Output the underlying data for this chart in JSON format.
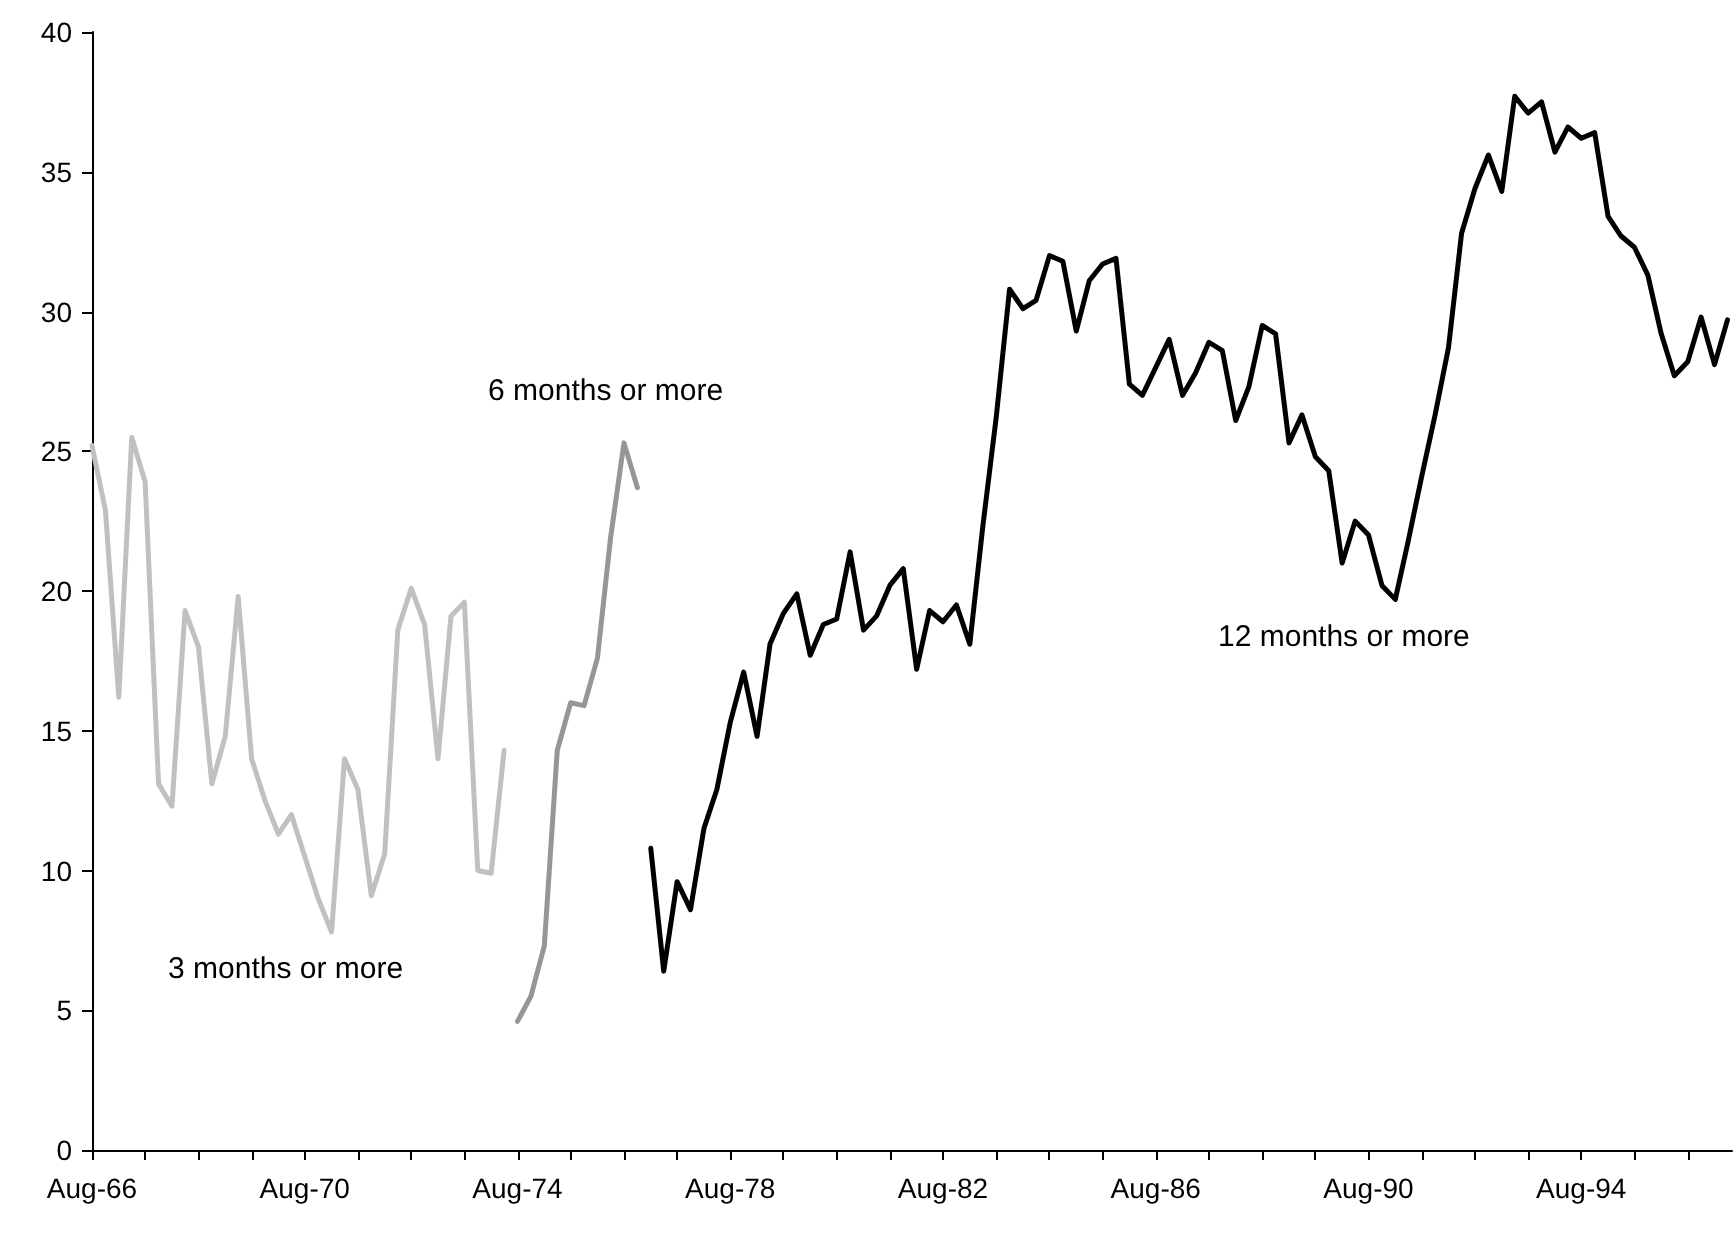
{
  "chart_data": {
    "type": "line",
    "xlim": [
      "1966-08",
      "1997-06"
    ],
    "xticks": [
      {
        "value": "1966-08",
        "label": "Aug-66"
      },
      {
        "value": "1967-08",
        "label": null
      },
      {
        "value": "1968-08",
        "label": null
      },
      {
        "value": "1969-08",
        "label": null
      },
      {
        "value": "1970-08",
        "label": "Aug-70"
      },
      {
        "value": "1971-08",
        "label": null
      },
      {
        "value": "1972-08",
        "label": null
      },
      {
        "value": "1973-08",
        "label": null
      },
      {
        "value": "1974-08",
        "label": "Aug-74"
      },
      {
        "value": "1975-08",
        "label": null
      },
      {
        "value": "1976-08",
        "label": null
      },
      {
        "value": "1977-08",
        "label": null
      },
      {
        "value": "1978-08",
        "label": "Aug-78"
      },
      {
        "value": "1979-08",
        "label": null
      },
      {
        "value": "1980-08",
        "label": null
      },
      {
        "value": "1981-08",
        "label": null
      },
      {
        "value": "1982-08",
        "label": "Aug-82"
      },
      {
        "value": "1983-08",
        "label": null
      },
      {
        "value": "1984-08",
        "label": null
      },
      {
        "value": "1985-08",
        "label": null
      },
      {
        "value": "1986-08",
        "label": "Aug-86"
      },
      {
        "value": "1987-08",
        "label": null
      },
      {
        "value": "1988-08",
        "label": null
      },
      {
        "value": "1989-08",
        "label": null
      },
      {
        "value": "1990-08",
        "label": "Aug-90"
      },
      {
        "value": "1991-08",
        "label": null
      },
      {
        "value": "1992-08",
        "label": null
      },
      {
        "value": "1993-08",
        "label": null
      },
      {
        "value": "1994-08",
        "label": "Aug-94"
      },
      {
        "value": "1995-08",
        "label": null
      },
      {
        "value": "1996-08",
        "label": null
      }
    ],
    "ylim": [
      0,
      40
    ],
    "yticks": [
      0,
      5,
      10,
      15,
      20,
      25,
      30,
      35,
      40
    ],
    "grid": false,
    "legend": false,
    "marker": "none",
    "line_style": "solid",
    "series": [
      {
        "name": "3 months or more",
        "color": "#c0c0c0",
        "x": [
          "1966-08",
          "1966-11",
          "1967-02",
          "1967-05",
          "1967-08",
          "1967-11",
          "1968-02",
          "1968-05",
          "1968-08",
          "1968-11",
          "1969-02",
          "1969-05",
          "1969-08",
          "1969-11",
          "1970-02",
          "1970-05",
          "1970-08",
          "1970-11",
          "1971-02",
          "1971-05",
          "1971-08",
          "1971-11",
          "1972-02",
          "1972-05",
          "1972-08",
          "1972-11",
          "1973-02",
          "1973-05",
          "1973-08",
          "1973-11",
          "1974-02",
          "1974-05"
        ],
        "values": [
          25.2,
          22.9,
          16.2,
          25.5,
          23.9,
          13.1,
          12.3,
          19.3,
          18.0,
          13.1,
          14.8,
          19.8,
          14.0,
          12.5,
          11.3,
          12.0,
          10.5,
          9.0,
          7.8,
          14.0,
          12.9,
          9.1,
          10.6,
          18.6,
          20.1,
          18.8,
          14.0,
          19.1,
          19.6,
          10.0,
          9.9,
          14.3
        ]
      },
      {
        "name": "6 months or more",
        "color": "#969696",
        "x": [
          "1974-08",
          "1974-11",
          "1975-02",
          "1975-05",
          "1975-08",
          "1975-11",
          "1976-02",
          "1976-05",
          "1976-08",
          "1976-11"
        ],
        "values": [
          4.6,
          5.5,
          7.3,
          14.3,
          16.0,
          15.9,
          17.6,
          21.9,
          25.3,
          23.7
        ]
      },
      {
        "name": "12 months or more",
        "color": "#000000",
        "x": [
          "1977-02",
          "1977-05",
          "1977-08",
          "1977-11",
          "1978-02",
          "1978-05",
          "1978-08",
          "1978-11",
          "1979-02",
          "1979-05",
          "1979-08",
          "1979-11",
          "1980-02",
          "1980-05",
          "1980-08",
          "1980-11",
          "1981-02",
          "1981-05",
          "1981-08",
          "1981-11",
          "1982-02",
          "1982-05",
          "1982-08",
          "1982-11",
          "1983-02",
          "1983-05",
          "1983-08",
          "1983-11",
          "1984-02",
          "1984-05",
          "1984-08",
          "1984-11",
          "1985-02",
          "1985-05",
          "1985-08",
          "1985-11",
          "1986-02",
          "1986-05",
          "1986-08",
          "1986-11",
          "1987-02",
          "1987-05",
          "1987-08",
          "1987-11",
          "1988-02",
          "1988-05",
          "1988-08",
          "1988-11",
          "1989-02",
          "1989-05",
          "1989-08",
          "1989-11",
          "1990-02",
          "1990-05",
          "1990-08",
          "1990-11",
          "1991-02",
          "1991-05",
          "1991-08",
          "1991-11",
          "1992-02",
          "1992-05",
          "1992-08",
          "1992-11",
          "1993-02",
          "1993-05",
          "1993-08",
          "1993-11",
          "1994-02",
          "1994-05",
          "1994-08",
          "1994-11",
          "1995-02",
          "1995-05",
          "1995-08",
          "1995-11",
          "1996-02",
          "1996-05",
          "1996-08",
          "1996-11",
          "1997-02",
          "1997-05"
        ],
        "values": [
          10.8,
          6.4,
          9.6,
          8.6,
          11.5,
          12.9,
          15.3,
          17.1,
          14.8,
          18.1,
          19.2,
          19.9,
          17.7,
          18.8,
          19.0,
          21.4,
          18.6,
          19.1,
          20.2,
          20.8,
          17.2,
          19.3,
          18.9,
          19.5,
          18.1,
          22.3,
          26.2,
          30.8,
          30.1,
          30.4,
          32.0,
          31.8,
          29.3,
          31.1,
          31.7,
          31.9,
          27.4,
          27.0,
          28.0,
          29.0,
          27.0,
          27.8,
          28.9,
          28.6,
          26.1,
          27.3,
          29.5,
          29.2,
          25.3,
          26.3,
          24.8,
          24.3,
          21.0,
          22.5,
          22.0,
          20.2,
          19.7,
          21.8,
          24.1,
          26.3,
          28.7,
          32.8,
          34.4,
          35.6,
          34.3,
          37.7,
          37.1,
          37.5,
          35.7,
          36.6,
          36.2,
          36.4,
          33.4,
          32.7,
          32.3,
          31.3,
          29.2,
          27.7,
          28.2,
          29.8,
          28.1,
          29.7
        ]
      }
    ]
  }
}
